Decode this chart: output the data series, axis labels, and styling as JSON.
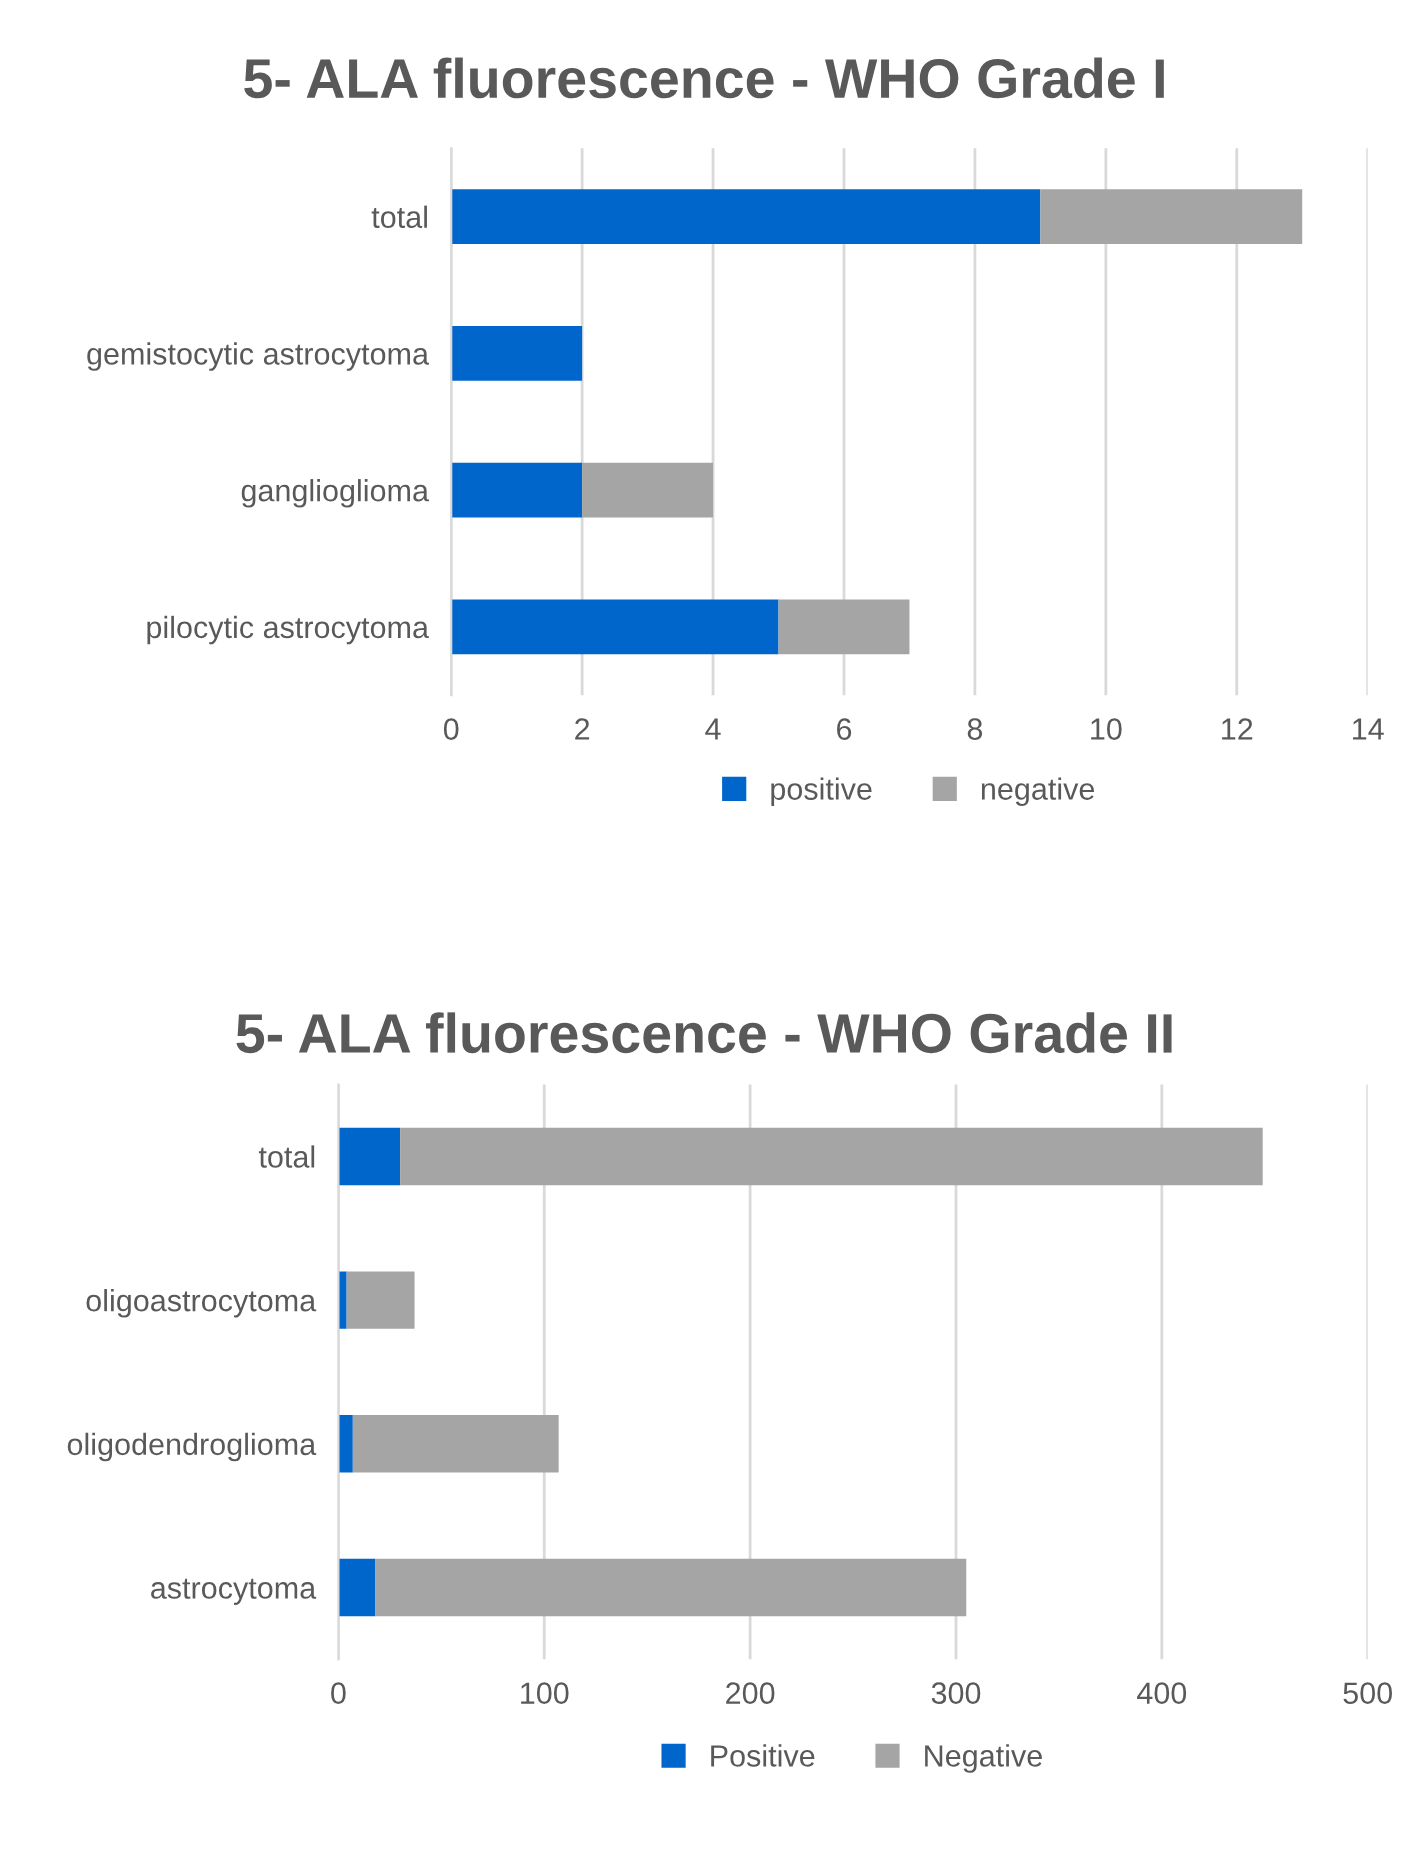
{
  "chart_data": [
    {
      "type": "bar",
      "title": "5- ALA fluorescence - WHO Grade I",
      "orientation": "horizontal",
      "stacked": true,
      "categories": [
        "total",
        "gemistocytic astrocytoma",
        "ganglioglioma",
        "pilocytic astrocytoma"
      ],
      "series": [
        {
          "name": "positive",
          "color": "#0066cc",
          "values": [
            9,
            2,
            2,
            5
          ]
        },
        {
          "name": "negative",
          "color": "#a5a5a5",
          "values": [
            4,
            0,
            2,
            2
          ]
        }
      ],
      "xlim": [
        0,
        14
      ],
      "xticks": [
        0,
        2,
        4,
        6,
        8,
        10,
        12,
        14
      ],
      "grid": "x",
      "legend": "bottom"
    },
    {
      "type": "bar",
      "title": "5- ALA fluorescence - WHO Grade II",
      "orientation": "horizontal",
      "stacked": true,
      "categories": [
        "total",
        "oligoastrocytoma",
        "oligodendroglioma",
        "astrocytoma"
      ],
      "series": [
        {
          "name": "Positive",
          "color": "#0066cc",
          "values": [
            30,
            4,
            7,
            18
          ]
        },
        {
          "name": "Negative",
          "color": "#a5a5a5",
          "values": [
            419,
            33,
            100,
            287
          ]
        }
      ],
      "xlim": [
        0,
        500
      ],
      "xticks": [
        0,
        100,
        200,
        300,
        400,
        500
      ],
      "grid": "x",
      "legend": "bottom"
    }
  ]
}
